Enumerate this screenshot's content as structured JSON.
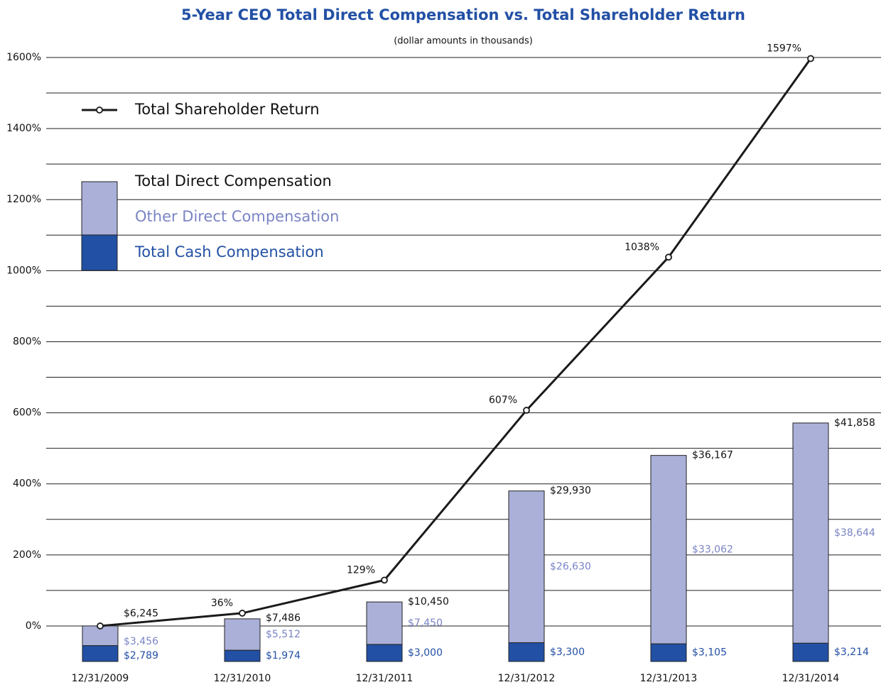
{
  "chart_data": {
    "type": "bar-line",
    "title": "5-Year CEO Total Direct Compensation vs. Total Shareholder Return",
    "subtitle": "(dollar amounts in thousands)",
    "categories": [
      "12/31/2009",
      "12/31/2010",
      "12/31/2011",
      "12/31/2012",
      "12/31/2013",
      "12/31/2014"
    ],
    "ylim": [
      -100,
      1600
    ],
    "yticks": [
      {
        "value": 0,
        "label": "0%"
      },
      {
        "value": 200,
        "label": "200%"
      },
      {
        "value": 400,
        "label": "400%"
      },
      {
        "value": 600,
        "label": "600%"
      },
      {
        "value": 800,
        "label": "800%"
      },
      {
        "value": 1000,
        "label": "1000%"
      },
      {
        "value": 1200,
        "label": "1200%"
      },
      {
        "value": 1400,
        "label": "1400%"
      },
      {
        "value": 1600,
        "label": "1600%"
      }
    ],
    "minor_yticks": [
      100,
      300,
      500,
      700,
      900,
      1100,
      1300,
      1500
    ],
    "y2lim": [
      0,
      106000
    ],
    "grid": true,
    "legend_total_label": "Total Direct Compensation",
    "totals": {
      "values": [
        6245,
        7486,
        10450,
        29930,
        36167,
        41858
      ],
      "value_labels": [
        "$6,245",
        "$7,486",
        "$10,450",
        "$29,930",
        "$36,167",
        "$41,858"
      ]
    },
    "series": [
      {
        "name": "Total Cash Compensation",
        "type": "bar",
        "axis": "y2",
        "color": "#2250a5",
        "label_color": "#2250a5",
        "values": [
          2789,
          1974,
          3000,
          3300,
          3105,
          3214
        ],
        "value_labels": [
          "$2,789",
          "$1,974",
          "$3,000",
          "$3,300",
          "$3,105",
          "$3,214"
        ]
      },
      {
        "name": "Other Direct Compensation",
        "type": "bar",
        "axis": "y2",
        "color": "#aab0d8",
        "label_color": "#7a84c4",
        "values": [
          3456,
          5512,
          7450,
          26630,
          33062,
          38644
        ],
        "value_labels": [
          "$3,456",
          "$5,512",
          "$7,450",
          "$26,630",
          "$33,062",
          "$38,644"
        ]
      },
      {
        "name": "Total Shareholder Return",
        "type": "line",
        "color": "#1a1a1a",
        "values": [
          0,
          36,
          129,
          607,
          1038,
          1597
        ],
        "value_labels": [
          null,
          "36%",
          "129%",
          "607%",
          "1038%",
          "1597%"
        ]
      }
    ]
  }
}
